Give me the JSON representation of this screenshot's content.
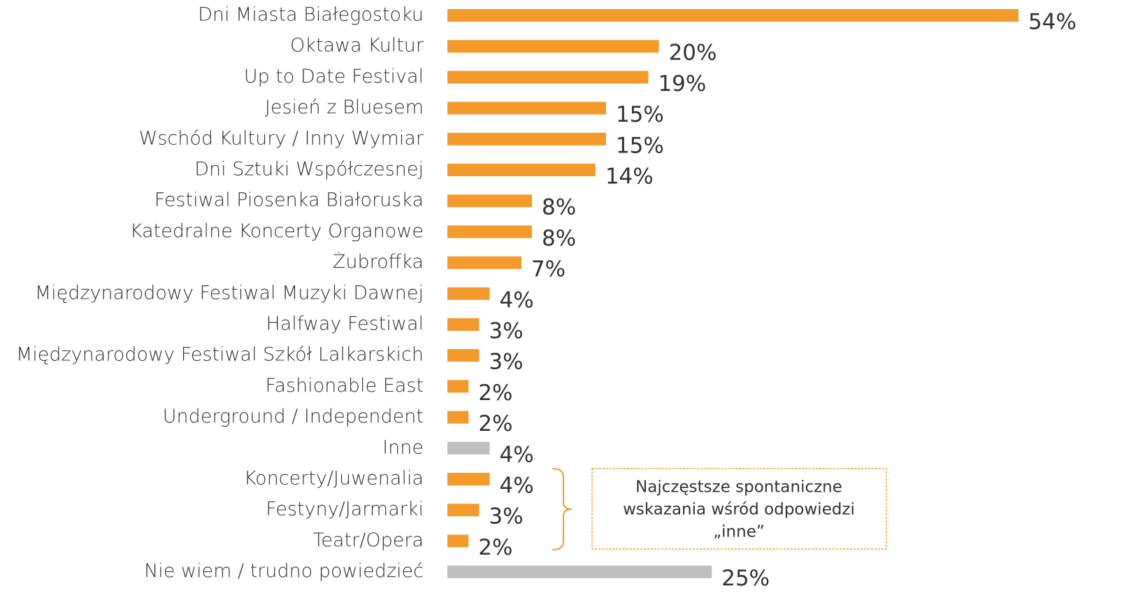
{
  "chart_data": {
    "type": "barh",
    "categories": [
      "Dni Miasta Białegostoku",
      "Oktawa Kultur",
      "Up to Date Festival",
      "Jesień z Bluesem",
      "Wschód Kultury / Inny Wymiar",
      "Dni Sztuki Współczesnej",
      "Festiwal Piosenka Białoruska",
      "Katedralne Koncerty Organowe",
      "Żubroffka",
      "Międzynarodowy Festiwal Muzyki Dawnej",
      "Halfway Festiwal",
      "Międzynarodowy Festiwal Szkół Lalkarskich",
      "Fashionable East",
      "Underground / Independent",
      "Inne",
      "Koncerty/Juwenalia",
      "Festyny/Jarmarki",
      "Teatr/Opera",
      "Nie wiem / trudno powiedzieć"
    ],
    "values": [
      54,
      20,
      19,
      15,
      15,
      14,
      8,
      8,
      7,
      4,
      3,
      3,
      2,
      2,
      4,
      4,
      3,
      2,
      25
    ],
    "value_labels": [
      "54%",
      "20%",
      "19%",
      "15%",
      "15%",
      "14%",
      "8%",
      "8%",
      "7%",
      "4%",
      "3%",
      "3%",
      "2%",
      "2%",
      "4%",
      "4%",
      "3%",
      "2%",
      "25%"
    ],
    "colors": [
      "#f39a2b",
      "#f39a2b",
      "#f39a2b",
      "#f39a2b",
      "#f39a2b",
      "#f39a2b",
      "#f39a2b",
      "#f39a2b",
      "#f39a2b",
      "#f39a2b",
      "#f39a2b",
      "#f39a2b",
      "#f39a2b",
      "#f39a2b",
      "#bfbfbf",
      "#f39a2b",
      "#f39a2b",
      "#f39a2b",
      "#bfbfbf"
    ],
    "annotation": [
      "Najczęstsze spontaniczne",
      "wskazania wśród odpowiedzi",
      "„inne”"
    ]
  }
}
